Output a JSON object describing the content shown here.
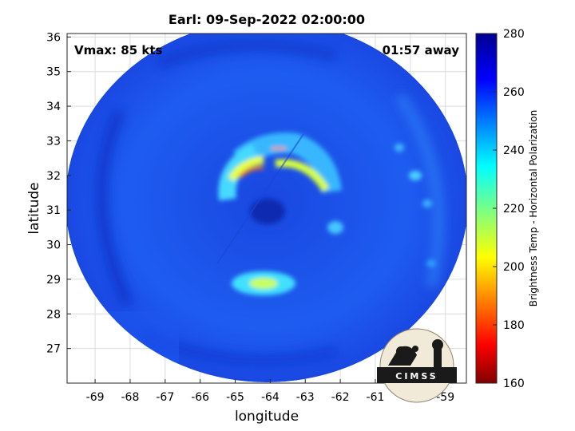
{
  "chart_data": {
    "type": "heatmap",
    "title": "Earl: 09-Sep-2022 02:00:00",
    "xlabel": "longitude",
    "ylabel": "latitude",
    "xlim": [
      -69.8,
      -58.4
    ],
    "ylim": [
      26.0,
      36.1
    ],
    "x_ticks": [
      -69,
      -68,
      -67,
      -66,
      -65,
      -64,
      -63,
      -62,
      -61,
      -60,
      -59
    ],
    "y_ticks": [
      27,
      28,
      29,
      30,
      31,
      32,
      33,
      34,
      35,
      36
    ],
    "grid": true,
    "colorbar": {
      "label": "Brightness Temp - Horizontal Polarization",
      "range": [
        160,
        280
      ],
      "ticks": [
        160,
        180,
        200,
        220,
        240,
        260,
        280
      ],
      "colormap": "jet"
    },
    "storm_center": {
      "lon": -64.0,
      "lat": 30.9
    },
    "annotations": {
      "vmax": "Vmax: 85 kts",
      "time_offset": "01:57 away"
    },
    "logo": "CIMSS"
  },
  "colors": {
    "background_field": "#1e4fe8",
    "jet_low": "#800000",
    "jet_high": "#00008f"
  }
}
